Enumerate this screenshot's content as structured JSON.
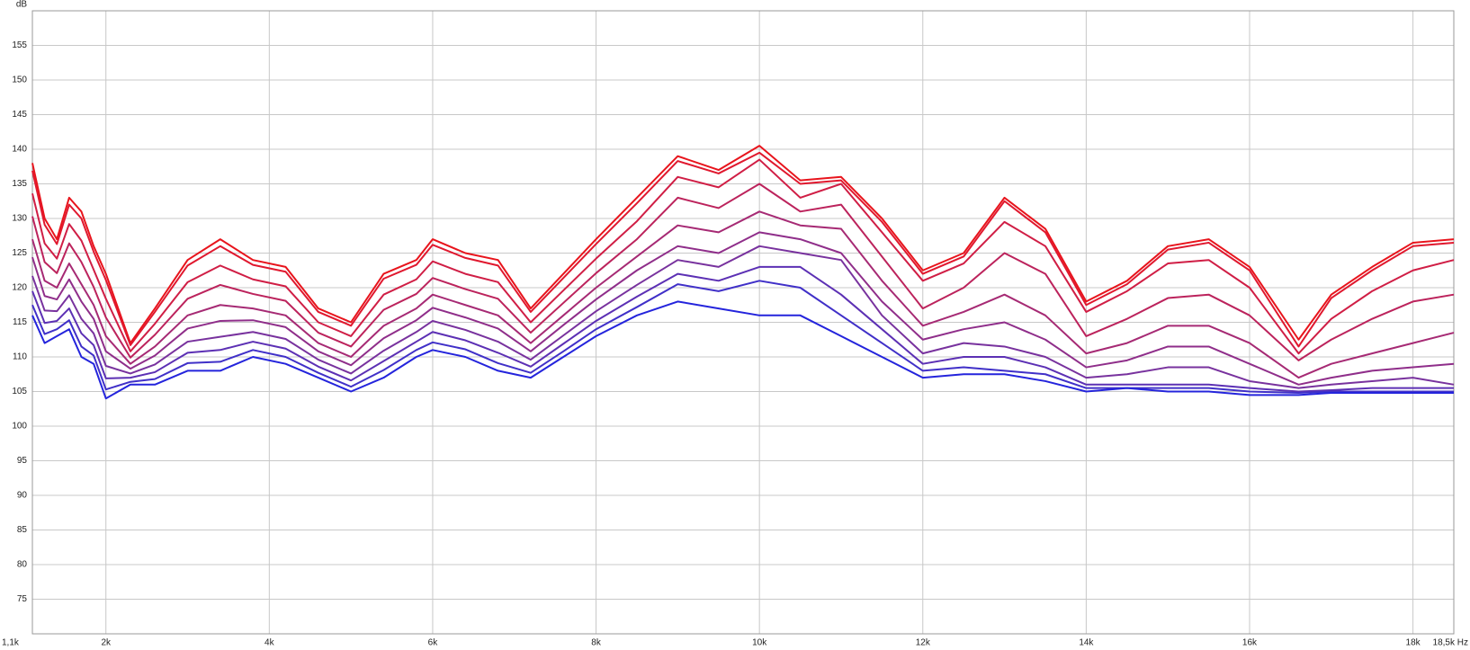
{
  "chart_data": {
    "type": "line",
    "ylabel": "dB",
    "grid": true,
    "xlim": [
      1100,
      18500
    ],
    "ylim": [
      70,
      160
    ],
    "xticks": [
      {
        "value": 1100,
        "label": "1,1k"
      },
      {
        "value": 2000,
        "label": "2k"
      },
      {
        "value": 4000,
        "label": "4k"
      },
      {
        "value": 6000,
        "label": "6k"
      },
      {
        "value": 8000,
        "label": "8k"
      },
      {
        "value": 10000,
        "label": "10k"
      },
      {
        "value": 12000,
        "label": "12k"
      },
      {
        "value": 14000,
        "label": "14k"
      },
      {
        "value": 16000,
        "label": "16k"
      },
      {
        "value": 18000,
        "label": "18k"
      },
      {
        "value": 18500,
        "label": "18,5k Hz"
      }
    ],
    "yticks": [
      75,
      80,
      85,
      90,
      95,
      100,
      105,
      110,
      115,
      120,
      125,
      130,
      135,
      140,
      145,
      150,
      155
    ],
    "x": [
      1100,
      1250,
      1400,
      1550,
      1700,
      1850,
      2000,
      2300,
      2600,
      3000,
      3400,
      3800,
      4200,
      4600,
      5000,
      5400,
      5800,
      6000,
      6400,
      6800,
      7200,
      7600,
      8000,
      8500,
      9000,
      9500,
      10000,
      10500,
      11000,
      11500,
      12000,
      12500,
      13000,
      13500,
      14000,
      14500,
      15000,
      15500,
      16000,
      16600,
      17000,
      17500,
      18000,
      18500
    ],
    "series": [
      {
        "color": "#e8141c",
        "values": [
          138,
          130,
          127,
          133,
          131,
          126,
          122,
          112,
          117,
          124,
          127,
          124,
          123,
          117,
          115,
          122,
          124,
          127,
          125,
          124,
          117,
          122,
          127,
          133,
          139,
          137,
          140.5,
          135.5,
          136,
          130,
          122.5,
          125,
          133,
          128.5,
          118,
          121,
          126,
          127,
          123,
          112.5,
          119,
          123,
          126.5,
          127
        ]
      },
      {
        "color": "#e0182e",
        "values": [
          136.9,
          129.1,
          126.3,
          132,
          130,
          125.2,
          121.1,
          111.7,
          116.5,
          123.2,
          126,
          123.3,
          122.3,
          116.5,
          114.5,
          121.3,
          123.3,
          126.2,
          124.3,
          123.2,
          116.5,
          121.4,
          126.3,
          132.2,
          138.3,
          136.5,
          139.5,
          135,
          135.5,
          129.5,
          122,
          124.5,
          132.5,
          128,
          117.5,
          120.5,
          125.5,
          126.5,
          122.5,
          111.5,
          118.5,
          122.5,
          126,
          126.5
        ]
      },
      {
        "color": "#d01e45",
        "values": [
          133.6,
          126.4,
          124.2,
          129.2,
          126.8,
          122.6,
          118.4,
          110.8,
          114.8,
          120.8,
          123.2,
          121.2,
          120.2,
          115,
          113,
          119,
          121.2,
          123.8,
          122,
          120.8,
          115,
          119.6,
          124.2,
          129.6,
          136,
          134.5,
          138.5,
          133,
          135,
          128,
          121,
          123.5,
          129.5,
          126,
          116.5,
          119.5,
          123.5,
          124,
          120,
          110.5,
          115.5,
          119.5,
          122.5,
          124
        ]
      },
      {
        "color": "#bc235c",
        "values": [
          130.3,
          123.7,
          122.1,
          126.4,
          123.7,
          120.1,
          115.7,
          109.9,
          113.2,
          118.4,
          120.4,
          119.1,
          118.1,
          113.5,
          111.5,
          116.8,
          119.1,
          121.4,
          119.8,
          118.4,
          113.5,
          117.8,
          122.1,
          127,
          133,
          131.5,
          135,
          131,
          132,
          124.5,
          117,
          120,
          125,
          122,
          113,
          115.5,
          118.5,
          119,
          116,
          109.5,
          112.5,
          115.5,
          118,
          119
        ]
      },
      {
        "color": "#a62a74",
        "values": [
          127,
          121,
          120,
          123.5,
          120.5,
          117.5,
          113,
          109,
          111.5,
          116,
          117.5,
          117,
          116,
          112,
          110,
          114.5,
          117,
          119,
          117.5,
          116,
          112,
          116,
          120,
          124.5,
          129,
          128,
          131,
          129,
          128.5,
          121,
          114.5,
          116.5,
          119,
          116,
          110.5,
          112,
          114.5,
          114.5,
          112,
          107,
          109,
          110.5,
          112,
          113.5
        ]
      },
      {
        "color": "#8f2e8a",
        "values": [
          124.4,
          118.8,
          118.3,
          121.2,
          118,
          115.5,
          110.8,
          108.3,
          110.2,
          114.1,
          115.2,
          115.3,
          114.3,
          110.8,
          108.8,
          112.7,
          115.3,
          117.1,
          115.7,
          114.1,
          110.8,
          114.6,
          118.3,
          122.5,
          126,
          125,
          128,
          127,
          125,
          118,
          112.5,
          114,
          115,
          112.5,
          108.5,
          109.5,
          111.5,
          111.5,
          109,
          106,
          107,
          108,
          108.5,
          109
        ]
      },
      {
        "color": "#78329e",
        "values": [
          121.7,
          116.7,
          116.6,
          118.9,
          115.5,
          113.4,
          108.7,
          107.6,
          108.9,
          112.2,
          112.9,
          113.6,
          112.6,
          109.6,
          107.6,
          110.9,
          113.6,
          115.2,
          113.9,
          112.2,
          109.6,
          113.1,
          116.6,
          120.4,
          124,
          123,
          126,
          125,
          124,
          116,
          110.5,
          112,
          111.5,
          110,
          107,
          107.5,
          108.5,
          108.5,
          106.5,
          105.5,
          106,
          106.5,
          107,
          106
        ]
      },
      {
        "color": "#5c30b4",
        "values": [
          119.5,
          114.9,
          115.2,
          117,
          113.4,
          111.7,
          106.9,
          107,
          107.8,
          110.6,
          111,
          112.2,
          111.2,
          108.6,
          106.6,
          109.4,
          112.2,
          113.6,
          112.4,
          110.6,
          108.6,
          111.9,
          115.2,
          118.7,
          122,
          121,
          123,
          123,
          119,
          114,
          109,
          110,
          110,
          108.5,
          106,
          106,
          106,
          106,
          105.5,
          105,
          105.2,
          105.5,
          105.5,
          105.5
        ]
      },
      {
        "color": "#4030c8",
        "values": [
          117.5,
          113.3,
          114,
          115.3,
          111.5,
          110.2,
          105.3,
          106.4,
          106.8,
          109.1,
          109.3,
          111,
          110,
          107.7,
          105.7,
          108.1,
          111,
          112.1,
          111.1,
          109.1,
          107.7,
          110.8,
          114,
          117.2,
          120.5,
          119.5,
          121,
          120,
          116,
          112,
          108,
          108.5,
          108,
          107.5,
          105.5,
          105.5,
          105.5,
          105.5,
          105,
          104.8,
          105,
          105,
          105,
          105
        ]
      },
      {
        "color": "#2424dc",
        "values": [
          116,
          112,
          113,
          114,
          110,
          109,
          104,
          106,
          106,
          108,
          108,
          110,
          109,
          107,
          105,
          107,
          110,
          111,
          110,
          108,
          107,
          110,
          113,
          116,
          118,
          117,
          116,
          116,
          113,
          110,
          107,
          107.5,
          107.5,
          106.5,
          105,
          105.5,
          105,
          105,
          104.5,
          104.5,
          104.8,
          104.8,
          104.8,
          104.8
        ]
      }
    ]
  }
}
